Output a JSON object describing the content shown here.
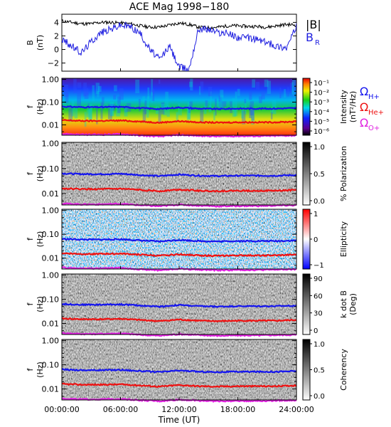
{
  "title": "ACE Mag 1998−180",
  "xlabel": "Time (UT)",
  "xticks": [
    "00:00:00",
    "06:00:00",
    "12:00:00",
    "18:00:00",
    "24:00:00"
  ],
  "colors": {
    "B_total": "#000000",
    "B_R": "#1f1fe0",
    "omega_H": "#1515ee",
    "omega_He": "#ee1111",
    "omega_O": "#e020e0"
  },
  "chart_data": [
    {
      "type": "line",
      "panel": "B",
      "ylabel": "B",
      "yunit": "(nT)",
      "yticks": [
        "4",
        "2",
        "0",
        "−2"
      ],
      "ylim": [
        -3.2,
        5.2
      ],
      "x_hours": [
        0,
        1,
        2,
        3,
        4,
        5,
        6,
        7,
        8,
        9,
        10,
        11,
        12,
        13,
        14,
        15,
        16,
        17,
        18,
        19,
        20,
        21,
        22,
        23,
        24
      ],
      "series": [
        {
          "name": "|B|",
          "values": [
            4.2,
            4.0,
            3.8,
            3.8,
            4.0,
            4.0,
            3.9,
            3.8,
            3.5,
            3.3,
            3.3,
            3.6,
            3.9,
            3.7,
            3.3,
            3.2,
            3.3,
            3.5,
            3.5,
            3.4,
            3.4,
            3.3,
            3.5,
            3.7,
            3.6
          ]
        },
        {
          "name": "B_R",
          "values": [
            1.5,
            0.5,
            -0.5,
            1.2,
            2.5,
            3.0,
            3.6,
            3.4,
            2.4,
            0.0,
            -1.5,
            0.5,
            -2.6,
            -2.9,
            3.1,
            3.0,
            2.5,
            2.4,
            1.8,
            1.7,
            1.5,
            1.0,
            0.5,
            0.3,
            3.4
          ]
        }
      ],
      "legend": [
        "|B|",
        "B_R"
      ]
    },
    {
      "type": "heatmap",
      "panel": "intensity",
      "ylabel": "f",
      "yunit": "(Hz)",
      "yticks": [
        "1.00",
        "0.10",
        "0.01"
      ],
      "colorbar_label": "Intensity",
      "colorbar_unit": "(nT²/Hz)",
      "colorbar_ticks": [
        "10⁻¹",
        "10⁻²",
        "10⁻³",
        "10⁻⁴",
        "10⁻⁵",
        "10⁻⁶"
      ],
      "legend": [
        "ΩH+",
        "ΩHe+",
        "ΩO+"
      ]
    },
    {
      "type": "heatmap",
      "panel": "polarization",
      "ylabel": "f",
      "yunit": "(Hz)",
      "yticks": [
        "1.00",
        "0.10",
        "0.01"
      ],
      "colorbar_label": "% Polarization",
      "colorbar_ticks": [
        "1.0",
        "0.5",
        "0.0"
      ]
    },
    {
      "type": "heatmap",
      "panel": "ellipticity",
      "ylabel": "f",
      "yunit": "(Hz)",
      "yticks": [
        "1.00",
        "0.10",
        "0.01"
      ],
      "colorbar_label": "Ellipticity",
      "colorbar_ticks": [
        "1",
        "0",
        "−1"
      ]
    },
    {
      "type": "heatmap",
      "panel": "k_dot_B",
      "ylabel": "f",
      "yunit": "(Hz)",
      "yticks": [
        "1.00",
        "0.10",
        "0.01"
      ],
      "colorbar_label": "k dot B",
      "colorbar_unit": "(Deg)",
      "colorbar_ticks": [
        "90",
        "60",
        "30",
        "0"
      ]
    },
    {
      "type": "heatmap",
      "panel": "coherency",
      "ylabel": "f",
      "yunit": "(Hz)",
      "yticks": [
        "1.00",
        "0.10",
        "0.01"
      ],
      "colorbar_label": "Coherency",
      "colorbar_ticks": [
        "1.0",
        "0.5",
        "0.0"
      ]
    }
  ],
  "gyrofrequency_hz": {
    "x_hours": [
      0,
      2,
      4,
      6,
      8,
      10,
      12,
      14,
      16,
      18,
      20,
      22,
      24
    ],
    "omega_H": [
      0.064,
      0.06,
      0.06,
      0.062,
      0.055,
      0.05,
      0.058,
      0.052,
      0.05,
      0.052,
      0.052,
      0.052,
      0.055
    ],
    "omega_He": [
      0.016,
      0.015,
      0.015,
      0.0155,
      0.014,
      0.0125,
      0.0145,
      0.013,
      0.0125,
      0.013,
      0.013,
      0.013,
      0.014
    ],
    "omega_O": [
      0.004,
      0.0037,
      0.0037,
      0.0039,
      0.0034,
      0.0031,
      0.0036,
      0.0033,
      0.0031,
      0.0032,
      0.0032,
      0.0033,
      0.0034
    ]
  }
}
